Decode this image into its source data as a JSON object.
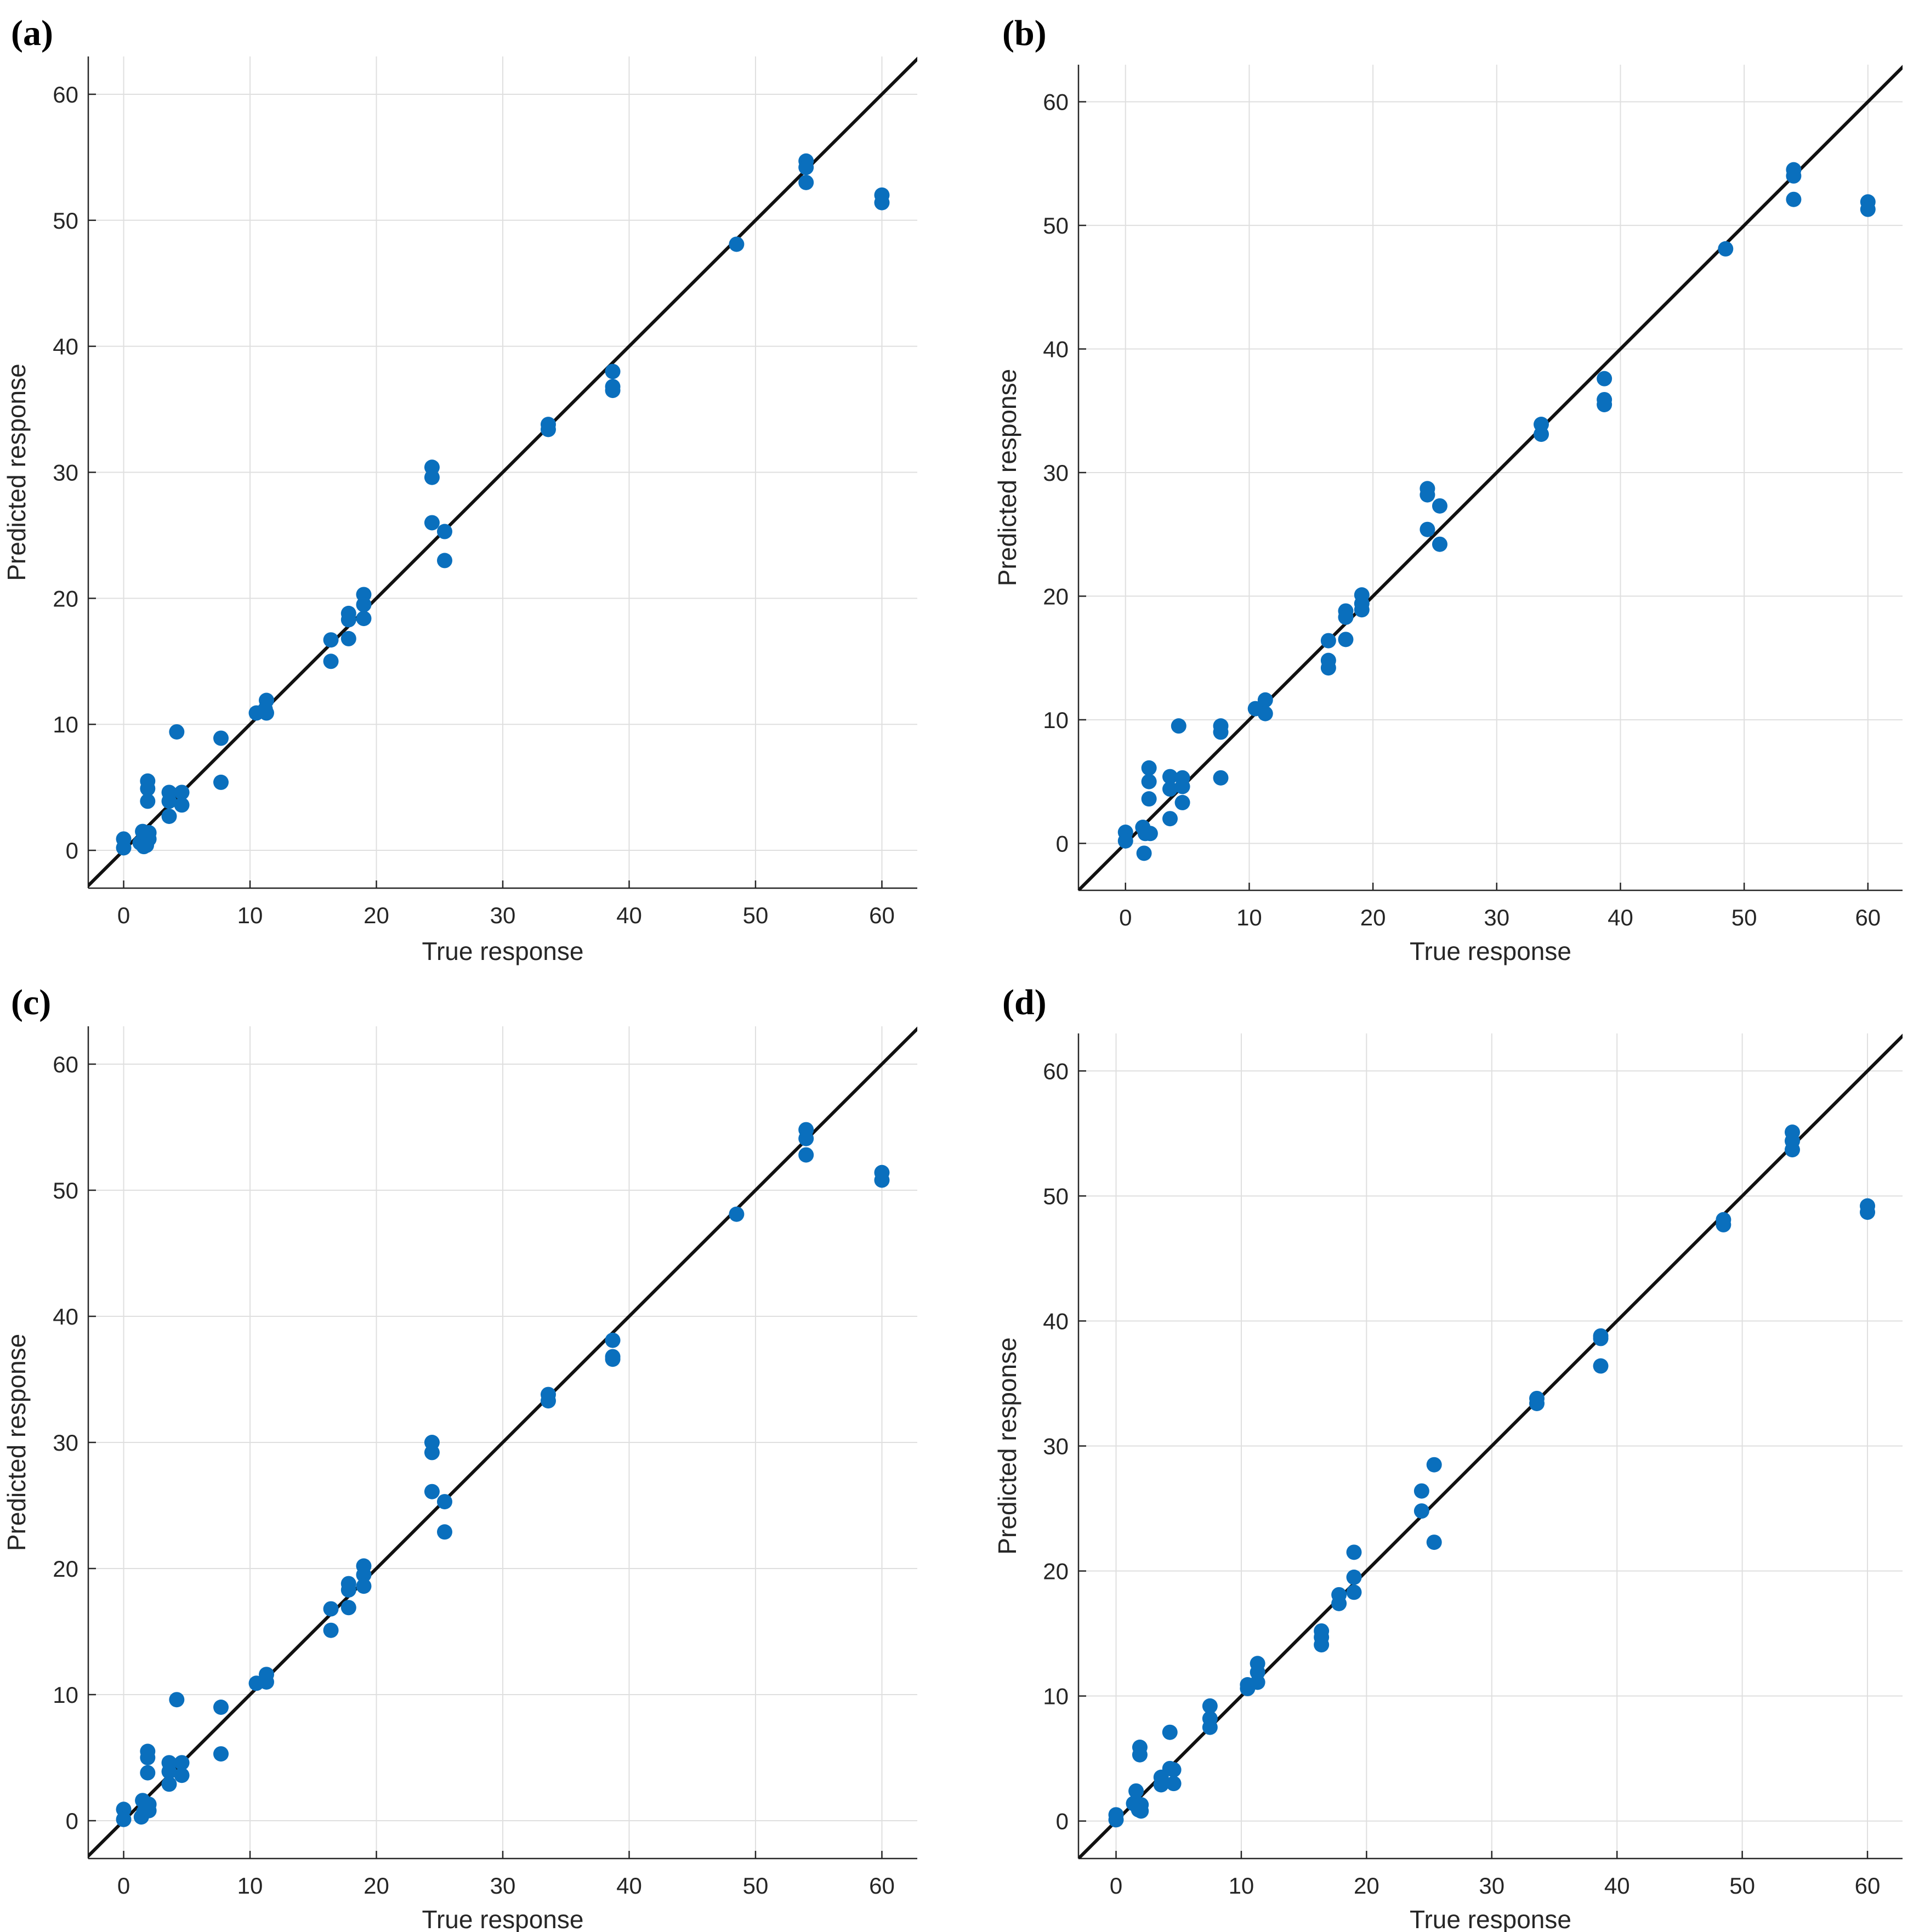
{
  "colors": {
    "point": "#0a6fbd",
    "reference_line": "#111111",
    "grid": "#dfdfdf",
    "axis": "#262626"
  },
  "chart_data": [
    {
      "panel": "(a)",
      "type": "scatter",
      "xlabel": "True response",
      "ylabel": "Predicted response",
      "xlim": [
        -2.8,
        62.8
      ],
      "ylim": [
        -3,
        63
      ],
      "xticks": [
        0,
        10,
        20,
        30,
        40,
        50,
        60
      ],
      "yticks": [
        0,
        10,
        20,
        30,
        40,
        50,
        60
      ],
      "grid": true,
      "reference_line": "y = x",
      "points": [
        [
          0,
          0.9
        ],
        [
          0,
          0.2
        ],
        [
          1.5,
          1.5
        ],
        [
          1.3,
          0.6
        ],
        [
          1.6,
          0.3
        ],
        [
          2,
          1.4
        ],
        [
          2,
          0.9
        ],
        [
          1.8,
          0.4
        ],
        [
          1.9,
          5.5
        ],
        [
          1.9,
          4.9
        ],
        [
          1.9,
          3.9
        ],
        [
          3.6,
          4.6
        ],
        [
          3.6,
          3.9
        ],
        [
          3.6,
          2.7
        ],
        [
          4.2,
          9.4
        ],
        [
          4.6,
          4.6
        ],
        [
          4.6,
          3.6
        ],
        [
          7.7,
          8.9
        ],
        [
          7.7,
          5.4
        ],
        [
          10.5,
          10.9
        ],
        [
          11.2,
          11.2
        ],
        [
          11.3,
          11.9
        ],
        [
          11.3,
          10.9
        ],
        [
          16.4,
          16.7
        ],
        [
          16.4,
          15
        ],
        [
          17.8,
          18.8
        ],
        [
          17.8,
          18.3
        ],
        [
          17.8,
          16.8
        ],
        [
          19,
          20.3
        ],
        [
          19,
          19.5
        ],
        [
          19,
          18.4
        ],
        [
          24.4,
          30.4
        ],
        [
          24.4,
          29.6
        ],
        [
          24.4,
          26
        ],
        [
          25.4,
          25.3
        ],
        [
          25.4,
          23
        ],
        [
          33.6,
          33.8
        ],
        [
          33.6,
          33.4
        ],
        [
          38.7,
          38
        ],
        [
          38.7,
          36.8
        ],
        [
          38.7,
          36.5
        ],
        [
          48.5,
          48.1
        ],
        [
          54,
          54.7
        ],
        [
          54,
          54.2
        ],
        [
          54,
          53
        ],
        [
          60,
          52
        ],
        [
          60,
          51.4
        ]
      ]
    },
    {
      "panel": "(b)",
      "type": "scatter",
      "xlabel": "True response",
      "ylabel": "Predicted response",
      "xlim": [
        -3.8,
        62.8
      ],
      "ylim": [
        -3.8,
        63
      ],
      "xticks": [
        0,
        10,
        20,
        30,
        40,
        50,
        60
      ],
      "yticks": [
        0,
        10,
        20,
        30,
        40,
        50,
        60
      ],
      "grid": true,
      "reference_line": "y = x",
      "points": [
        [
          0,
          0.9
        ],
        [
          0,
          0.2
        ],
        [
          1.5,
          -0.8
        ],
        [
          1.4,
          1.3
        ],
        [
          1.6,
          0.8
        ],
        [
          2,
          0.8
        ],
        [
          1.9,
          6.1
        ],
        [
          1.9,
          5
        ],
        [
          1.9,
          3.6
        ],
        [
          3.6,
          5.4
        ],
        [
          3.6,
          4.4
        ],
        [
          3.6,
          2
        ],
        [
          4.3,
          9.5
        ],
        [
          4.6,
          5.3
        ],
        [
          4.6,
          4.6
        ],
        [
          4.6,
          3.3
        ],
        [
          7.7,
          9.5
        ],
        [
          7.7,
          9
        ],
        [
          7.7,
          5.3
        ],
        [
          10.5,
          10.9
        ],
        [
          11.3,
          11.6
        ],
        [
          11.3,
          10.5
        ],
        [
          16.4,
          16.4
        ],
        [
          16.4,
          14.8
        ],
        [
          16.4,
          14.2
        ],
        [
          17.8,
          18.8
        ],
        [
          17.8,
          18.3
        ],
        [
          17.8,
          16.5
        ],
        [
          19.1,
          20.1
        ],
        [
          19.1,
          19.4
        ],
        [
          19.1,
          18.9
        ],
        [
          24.4,
          28.7
        ],
        [
          24.4,
          28.2
        ],
        [
          24.4,
          25.4
        ],
        [
          25.4,
          27.3
        ],
        [
          25.4,
          24.2
        ],
        [
          33.6,
          33.9
        ],
        [
          33.6,
          33.1
        ],
        [
          38.7,
          37.6
        ],
        [
          38.7,
          35.9
        ],
        [
          38.7,
          35.5
        ],
        [
          48.5,
          48.1
        ],
        [
          54,
          54.5
        ],
        [
          54,
          54
        ],
        [
          54,
          52.1
        ],
        [
          60,
          51.9
        ],
        [
          60,
          51.3
        ]
      ]
    },
    {
      "panel": "(c)",
      "type": "scatter",
      "xlabel": "True response",
      "ylabel": "Predicted response",
      "xlim": [
        -2.8,
        62.8
      ],
      "ylim": [
        -3,
        63
      ],
      "xticks": [
        0,
        10,
        20,
        30,
        40,
        50,
        60
      ],
      "yticks": [
        0,
        10,
        20,
        30,
        40,
        50,
        60
      ],
      "grid": true,
      "reference_line": "y = x",
      "points": [
        [
          0,
          0.9
        ],
        [
          0,
          0.1
        ],
        [
          1.5,
          1.6
        ],
        [
          1.4,
          0.3
        ],
        [
          1.6,
          0.7
        ],
        [
          2,
          1.3
        ],
        [
          2,
          0.8
        ],
        [
          1.9,
          5.5
        ],
        [
          1.9,
          5
        ],
        [
          1.9,
          3.8
        ],
        [
          3.6,
          4.6
        ],
        [
          3.6,
          3.9
        ],
        [
          3.6,
          2.9
        ],
        [
          4.2,
          9.6
        ],
        [
          4.6,
          4.6
        ],
        [
          4.6,
          3.6
        ],
        [
          7.7,
          9
        ],
        [
          7.7,
          5.3
        ],
        [
          10.5,
          10.9
        ],
        [
          11.3,
          11.6
        ],
        [
          11.3,
          11
        ],
        [
          16.4,
          16.8
        ],
        [
          16.4,
          15.1
        ],
        [
          17.8,
          18.8
        ],
        [
          17.8,
          18.3
        ],
        [
          17.8,
          16.9
        ],
        [
          19,
          20.2
        ],
        [
          19,
          19.5
        ],
        [
          19,
          18.6
        ],
        [
          24.4,
          30
        ],
        [
          24.4,
          29.2
        ],
        [
          24.4,
          26.1
        ],
        [
          25.4,
          25.3
        ],
        [
          25.4,
          22.9
        ],
        [
          33.6,
          33.8
        ],
        [
          33.6,
          33.3
        ],
        [
          38.7,
          38.1
        ],
        [
          38.7,
          36.8
        ],
        [
          38.7,
          36.6
        ],
        [
          48.5,
          48.1
        ],
        [
          54,
          54.8
        ],
        [
          54,
          54.1
        ],
        [
          54,
          52.8
        ],
        [
          60,
          51.4
        ],
        [
          60,
          50.8
        ]
      ]
    },
    {
      "panel": "(d)",
      "type": "scatter",
      "xlabel": "True response",
      "ylabel": "Predicted response",
      "xlim": [
        -3,
        62.8
      ],
      "ylim": [
        -3,
        63
      ],
      "xticks": [
        0,
        10,
        20,
        30,
        40,
        50,
        60
      ],
      "yticks": [
        0,
        10,
        20,
        30,
        40,
        50,
        60
      ],
      "grid": true,
      "reference_line": "y = x",
      "points": [
        [
          0,
          0.5
        ],
        [
          0,
          0.1
        ],
        [
          1.4,
          1.4
        ],
        [
          1.6,
          2.4
        ],
        [
          1.8,
          0.9
        ],
        [
          2,
          1.3
        ],
        [
          2,
          0.8
        ],
        [
          1.9,
          5.9
        ],
        [
          1.9,
          5.3
        ],
        [
          3.6,
          3.5
        ],
        [
          3.6,
          2.9
        ],
        [
          4.3,
          7.1
        ],
        [
          4.3,
          4.2
        ],
        [
          4.6,
          4.1
        ],
        [
          4.6,
          3
        ],
        [
          7.5,
          9.2
        ],
        [
          7.5,
          8.2
        ],
        [
          7.5,
          7.5
        ],
        [
          10.5,
          10.9
        ],
        [
          10.5,
          10.6
        ],
        [
          11.3,
          12.6
        ],
        [
          11.3,
          11.9
        ],
        [
          11.3,
          11.1
        ],
        [
          16.4,
          15.2
        ],
        [
          16.4,
          14.7
        ],
        [
          16.4,
          14.1
        ],
        [
          17.8,
          18.1
        ],
        [
          17.8,
          17.4
        ],
        [
          19,
          21.5
        ],
        [
          19,
          19.5
        ],
        [
          19,
          18.3
        ],
        [
          24.4,
          26.4
        ],
        [
          24.4,
          24.8
        ],
        [
          25.4,
          28.5
        ],
        [
          25.4,
          22.3
        ],
        [
          33.6,
          33.8
        ],
        [
          33.6,
          33.4
        ],
        [
          38.7,
          38.8
        ],
        [
          38.7,
          38.6
        ],
        [
          38.7,
          36.4
        ],
        [
          48.5,
          48.1
        ],
        [
          48.5,
          47.7
        ],
        [
          54,
          55.1
        ],
        [
          54,
          54.4
        ],
        [
          54,
          53.7
        ],
        [
          60,
          49.2
        ],
        [
          60,
          48.7
        ]
      ]
    }
  ]
}
